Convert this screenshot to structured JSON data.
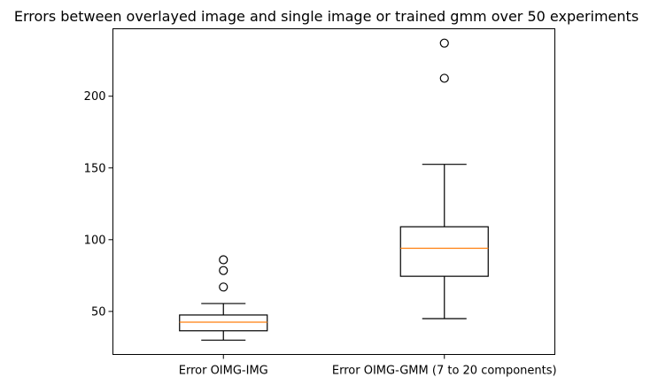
{
  "chart_data": {
    "type": "box",
    "title": "Errors between overlayed image and single image or trained gmm over 50 experiments",
    "xlabel": "",
    "ylabel": "",
    "ylim": [
      20,
      247
    ],
    "yticks": [
      50,
      100,
      150,
      200
    ],
    "grid": false,
    "categories": [
      "Error OIMG-IMG",
      "Error OIMG-GMM (7 to 20 components)"
    ],
    "boxes": [
      {
        "whisker_low": 30,
        "q1": 36.5,
        "median": 42.5,
        "q3": 47.5,
        "whisker_high": 55.5,
        "outliers": [
          67,
          78.5,
          86
        ]
      },
      {
        "whisker_low": 45,
        "q1": 74.5,
        "median": 94,
        "q3": 109,
        "whisker_high": 152.5,
        "outliers": [
          212.5,
          237
        ]
      }
    ],
    "colors": {
      "box": "#000000",
      "median": "#ff7f0e",
      "background": "#ffffff"
    }
  }
}
